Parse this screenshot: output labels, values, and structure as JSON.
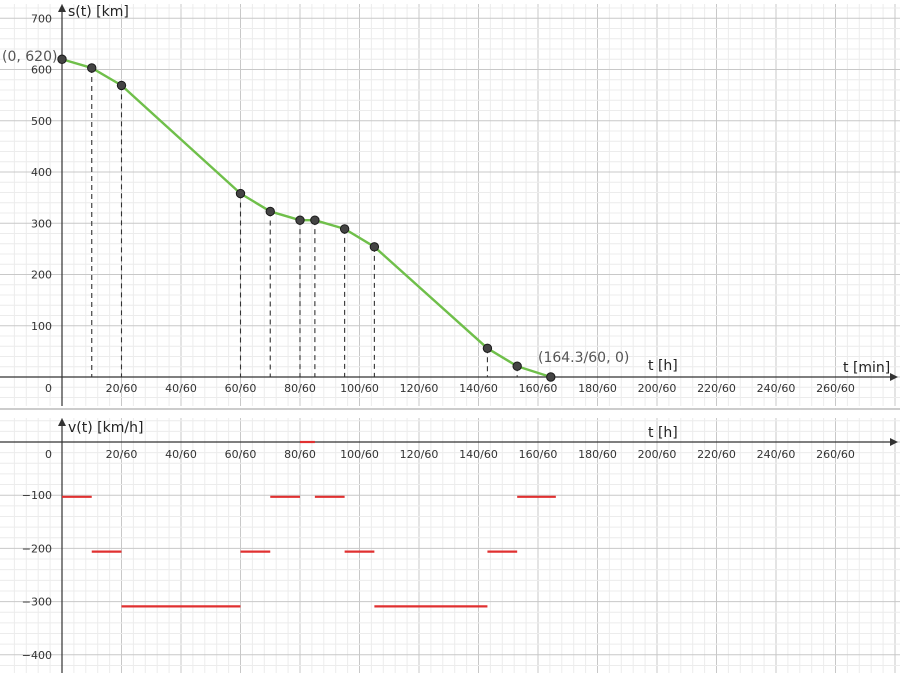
{
  "chart_data": [
    {
      "type": "line",
      "ylabel": "s(t) [km]",
      "xlabel": "t [h]",
      "xlabel2": "t [min]",
      "x_unit_note": "t in minutes; tick labels show minutes/60",
      "xlim": [
        0,
        280
      ],
      "ylim": [
        0,
        700
      ],
      "xticks": [
        "20/60",
        "40/60",
        "60/60",
        "80/60",
        "100/60",
        "120/60",
        "140/60",
        "160/60",
        "180/60",
        "200/60",
        "220/60",
        "240/60",
        "260/60"
      ],
      "yticks": [
        "100",
        "200",
        "300",
        "400",
        "500",
        "600",
        "700"
      ],
      "origin_label": "0",
      "grid": true,
      "color": "#6fbf4a",
      "points": [
        {
          "x": 0,
          "y": 620
        },
        {
          "x": 10,
          "y": 603
        },
        {
          "x": 20,
          "y": 569
        },
        {
          "x": 60,
          "y": 358
        },
        {
          "x": 70,
          "y": 323
        },
        {
          "x": 80,
          "y": 306
        },
        {
          "x": 85,
          "y": 306
        },
        {
          "x": 95,
          "y": 289
        },
        {
          "x": 105,
          "y": 254
        },
        {
          "x": 143,
          "y": 56
        },
        {
          "x": 153,
          "y": 21
        },
        {
          "x": 164.3,
          "y": 0
        }
      ],
      "annotations": [
        {
          "text": "(0, 620)",
          "x": 0,
          "y": 620
        },
        {
          "text": "(164.3/60, 0)",
          "x": 164.3,
          "y": 0
        }
      ]
    },
    {
      "type": "line",
      "ylabel": "v(t) [km/h]",
      "xlabel": "t [h]",
      "xlim": [
        0,
        280
      ],
      "ylim": [
        -420,
        25
      ],
      "xticks": [
        "20/60",
        "40/60",
        "60/60",
        "80/60",
        "100/60",
        "120/60",
        "140/60",
        "160/60",
        "180/60",
        "200/60",
        "220/60",
        "240/60",
        "260/60"
      ],
      "yticks": [
        "−100",
        "−200",
        "−300",
        "−400"
      ],
      "origin_label": "0",
      "grid": true,
      "color": "#e03030",
      "segments": [
        {
          "x0": 0,
          "x1": 10,
          "y": -103
        },
        {
          "x0": 10,
          "x1": 20,
          "y": -206
        },
        {
          "x0": 20,
          "x1": 60,
          "y": -309
        },
        {
          "x0": 60,
          "x1": 70,
          "y": -206
        },
        {
          "x0": 70,
          "x1": 80,
          "y": -103
        },
        {
          "x0": 80,
          "x1": 85,
          "y": 0
        },
        {
          "x0": 85,
          "x1": 95,
          "y": -103
        },
        {
          "x0": 95,
          "x1": 105,
          "y": -206
        },
        {
          "x0": 105,
          "x1": 143,
          "y": -309
        },
        {
          "x0": 143,
          "x1": 153,
          "y": -206
        },
        {
          "x0": 153,
          "x1": 166,
          "y": -103
        }
      ]
    }
  ]
}
